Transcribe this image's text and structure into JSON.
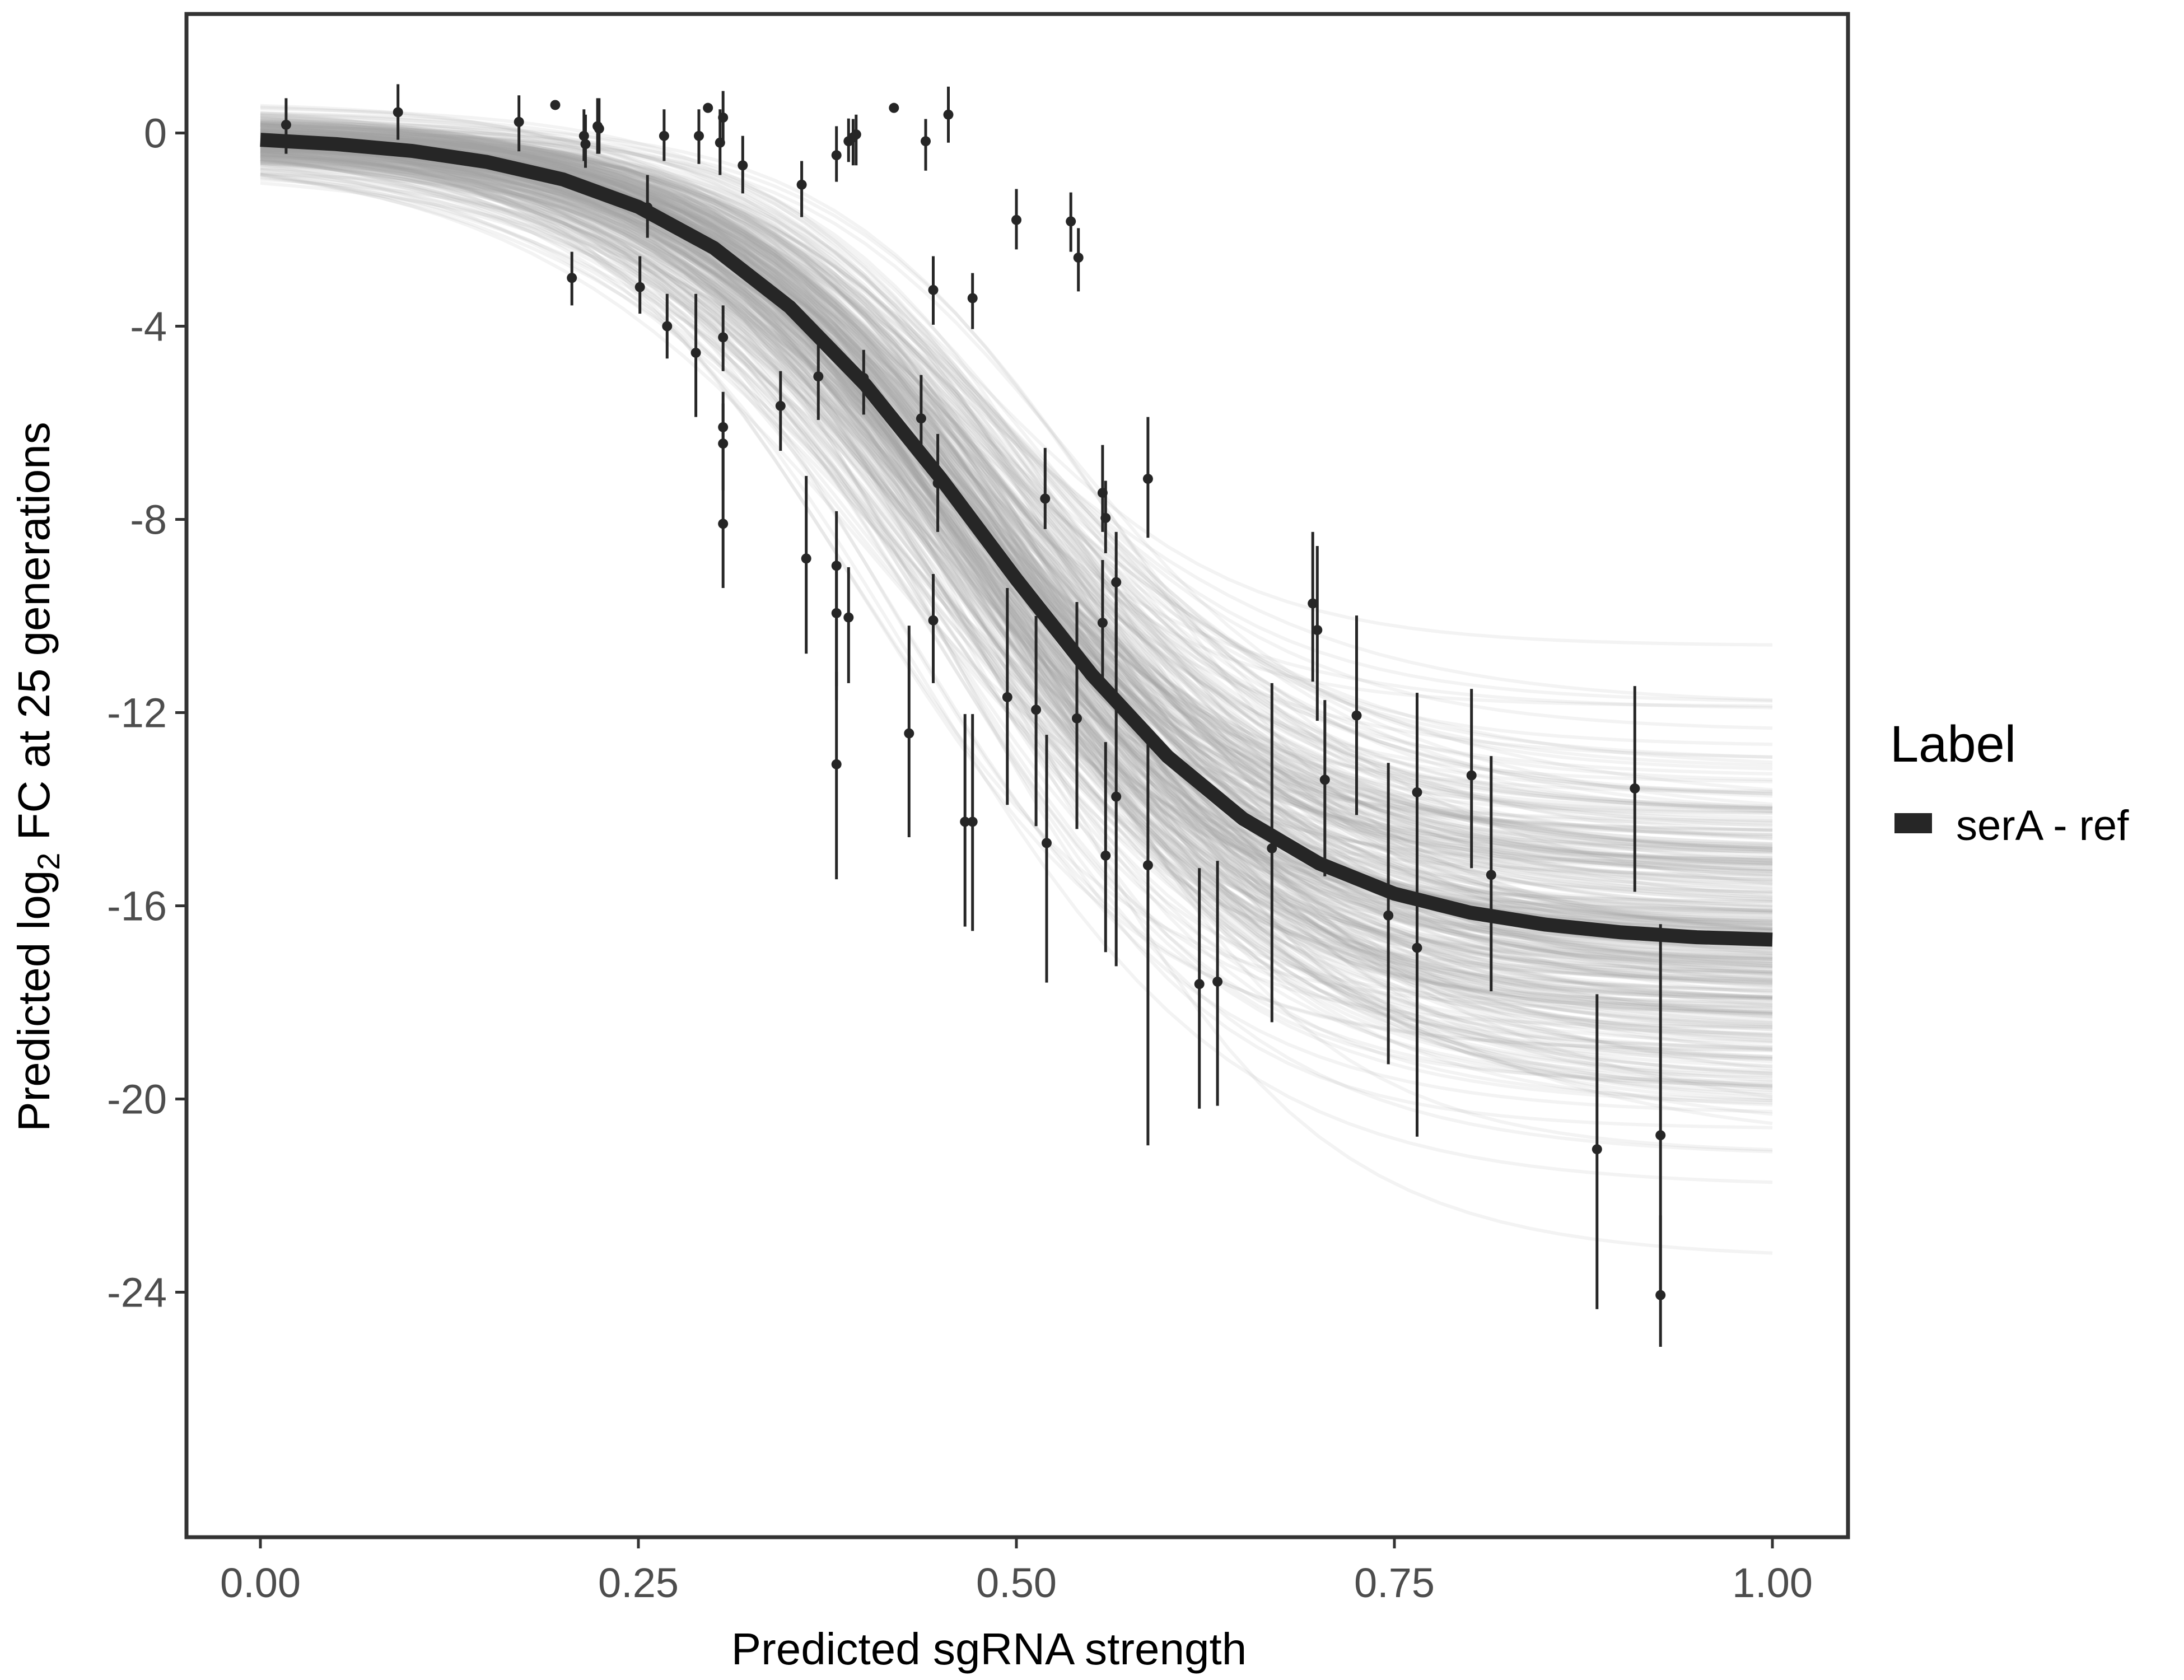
{
  "chart_data": {
    "type": "scatter",
    "title": "",
    "xlabel": "Predicted sgRNA strength",
    "ylabel_parts": {
      "pre": "Predicted  log",
      "sub": "2",
      "post": " FC at 25 generations"
    },
    "xlim": [
      -0.05,
      1.05
    ],
    "ylim": [
      -29.1,
      2.5
    ],
    "x_ticks": [
      0,
      0.25,
      0.5,
      0.75,
      1
    ],
    "x_tick_labels": [
      "0.00",
      "0.25",
      "0.50",
      "0.75",
      "1.00"
    ],
    "y_ticks": [
      0,
      -4,
      -8,
      -12,
      -16,
      -20,
      -24
    ],
    "y_tick_labels": [
      "0",
      "-4",
      "-8",
      "-12",
      "-16",
      "-20",
      "-24"
    ],
    "grid": false,
    "legend": {
      "title": "Label",
      "placement": "right",
      "entries": [
        {
          "label": "serA - ref",
          "color": "#262626"
        }
      ]
    },
    "colors": {
      "fit": "#262626",
      "points": "#262626",
      "draws": "#a3a3a3",
      "panel_border": "#333333"
    },
    "fit_curve": {
      "x": [
        0,
        0.05,
        0.1,
        0.15,
        0.2,
        0.25,
        0.3,
        0.35,
        0.4,
        0.45,
        0.5,
        0.55,
        0.6,
        0.65,
        0.7,
        0.75,
        0.8,
        0.85,
        0.9,
        0.95,
        1
      ],
      "y": [
        -0.14,
        -0.23,
        -0.37,
        -0.6,
        -0.96,
        -1.53,
        -2.38,
        -3.6,
        -5.21,
        -7.15,
        -9.24,
        -11.22,
        -12.91,
        -14.2,
        -15.12,
        -15.75,
        -16.14,
        -16.39,
        -16.55,
        -16.65,
        -16.7
      ]
    },
    "posterior_draws": {
      "count": 350,
      "asymptote_mean": -16.8,
      "asymptote_sd": 1.9,
      "midpoint_mean": 0.48,
      "midpoint_sd": 0.03,
      "steepness_mean": 10,
      "steepness_sd": 1.2
    },
    "points": [
      {
        "x": 0.017,
        "y": 0.17,
        "lo": -0.43,
        "hi": 0.72
      },
      {
        "x": 0.091,
        "y": 0.43,
        "lo": -0.14,
        "hi": 1.01
      },
      {
        "x": 0.171,
        "y": 0.23,
        "lo": -0.38,
        "hi": 0.78
      },
      {
        "x": 0.195,
        "y": 0.58,
        "lo": 0.58,
        "hi": 0.58
      },
      {
        "x": 0.206,
        "y": -3.0,
        "lo": -3.57,
        "hi": -2.46
      },
      {
        "x": 0.214,
        "y": -0.06,
        "lo": -0.58,
        "hi": 0.49
      },
      {
        "x": 0.215,
        "y": -0.23,
        "lo": -0.72,
        "hi": 0.38
      },
      {
        "x": 0.223,
        "y": 0.14,
        "lo": -0.43,
        "hi": 0.72
      },
      {
        "x": 0.224,
        "y": 0.09,
        "lo": -0.43,
        "hi": 0.72
      },
      {
        "x": 0.251,
        "y": -3.19,
        "lo": -3.74,
        "hi": -2.55
      },
      {
        "x": 0.256,
        "y": -1.54,
        "lo": -2.17,
        "hi": -0.87
      },
      {
        "x": 0.267,
        "y": -0.06,
        "lo": -0.58,
        "hi": 0.49
      },
      {
        "x": 0.269,
        "y": -4.0,
        "lo": -4.67,
        "hi": -3.33
      },
      {
        "x": 0.288,
        "y": -4.55,
        "lo": -5.88,
        "hi": -3.33
      },
      {
        "x": 0.29,
        "y": -0.06,
        "lo": -0.64,
        "hi": 0.49
      },
      {
        "x": 0.296,
        "y": 0.52,
        "lo": 0.52,
        "hi": 0.52
      },
      {
        "x": 0.304,
        "y": -0.2,
        "lo": -0.87,
        "hi": 0.49
      },
      {
        "x": 0.306,
        "y": 0.32,
        "lo": -0.23,
        "hi": 0.87
      },
      {
        "x": 0.306,
        "y": -4.23,
        "lo": -4.93,
        "hi": -3.57
      },
      {
        "x": 0.306,
        "y": -6.09,
        "lo": -6.81,
        "hi": -5.36
      },
      {
        "x": 0.306,
        "y": -6.43,
        "lo": -7.4,
        "hi": -5.6
      },
      {
        "x": 0.306,
        "y": -8.09,
        "lo": -9.42,
        "hi": -6.81
      },
      {
        "x": 0.319,
        "y": -0.67,
        "lo": -1.25,
        "hi": -0.06
      },
      {
        "x": 0.344,
        "y": -5.65,
        "lo": -6.58,
        "hi": -4.93
      },
      {
        "x": 0.358,
        "y": -1.07,
        "lo": -1.74,
        "hi": -0.58
      },
      {
        "x": 0.361,
        "y": -8.81,
        "lo": -10.78,
        "hi": -7.1
      },
      {
        "x": 0.369,
        "y": -5.04,
        "lo": -5.94,
        "hi": -4.2
      },
      {
        "x": 0.381,
        "y": -0.46,
        "lo": -1.01,
        "hi": 0.14
      },
      {
        "x": 0.381,
        "y": -8.96,
        "lo": -11.45,
        "hi": -7.83
      },
      {
        "x": 0.381,
        "y": -9.94,
        "lo": -11.74,
        "hi": -8.84
      },
      {
        "x": 0.381,
        "y": -13.07,
        "lo": -15.45,
        "hi": -11.16
      },
      {
        "x": 0.389,
        "y": -0.17,
        "lo": -0.6,
        "hi": 0.3
      },
      {
        "x": 0.389,
        "y": -10.03,
        "lo": -11.39,
        "hi": -8.99
      },
      {
        "x": 0.392,
        "y": -0.09,
        "lo": -0.67,
        "hi": 0.29
      },
      {
        "x": 0.394,
        "y": -0.03,
        "lo": -0.67,
        "hi": 0.38
      },
      {
        "x": 0.399,
        "y": -5.07,
        "lo": -5.83,
        "hi": -4.49
      },
      {
        "x": 0.419,
        "y": 0.52,
        "lo": 0.52,
        "hi": 0.52
      },
      {
        "x": 0.429,
        "y": -12.43,
        "lo": -14.58,
        "hi": -10.2
      },
      {
        "x": 0.437,
        "y": -5.91,
        "lo": -6.81,
        "hi": -5.01
      },
      {
        "x": 0.44,
        "y": -0.17,
        "lo": -0.78,
        "hi": 0.29
      },
      {
        "x": 0.445,
        "y": -3.25,
        "lo": -3.97,
        "hi": -2.55
      },
      {
        "x": 0.445,
        "y": -10.09,
        "lo": -11.39,
        "hi": -9.13
      },
      {
        "x": 0.448,
        "y": -7.25,
        "lo": -8.26,
        "hi": -6.23
      },
      {
        "x": 0.455,
        "y": 0.38,
        "lo": -0.2,
        "hi": 0.96
      },
      {
        "x": 0.466,
        "y": -14.26,
        "lo": -16.43,
        "hi": -12.03
      },
      {
        "x": 0.471,
        "y": -14.26,
        "lo": -16.52,
        "hi": -12.03
      },
      {
        "x": 0.471,
        "y": -3.42,
        "lo": -4.06,
        "hi": -2.9
      },
      {
        "x": 0.494,
        "y": -11.68,
        "lo": -13.91,
        "hi": -9.42
      },
      {
        "x": 0.5,
        "y": -1.8,
        "lo": -2.41,
        "hi": -1.16
      },
      {
        "x": 0.513,
        "y": -11.94,
        "lo": -14.35,
        "hi": -10.0
      },
      {
        "x": 0.519,
        "y": -7.57,
        "lo": -8.2,
        "hi": -6.52
      },
      {
        "x": 0.52,
        "y": -14.7,
        "lo": -17.59,
        "hi": -12.46
      },
      {
        "x": 0.536,
        "y": -1.83,
        "lo": -2.46,
        "hi": -1.23
      },
      {
        "x": 0.54,
        "y": -12.12,
        "lo": -14.41,
        "hi": -9.71
      },
      {
        "x": 0.541,
        "y": -2.58,
        "lo": -3.28,
        "hi": -1.97
      },
      {
        "x": 0.557,
        "y": -7.45,
        "lo": -8.26,
        "hi": -6.46
      },
      {
        "x": 0.557,
        "y": -10.14,
        "lo": -11.45,
        "hi": -8.84
      },
      {
        "x": 0.559,
        "y": -7.97,
        "lo": -8.7,
        "hi": -7.2
      },
      {
        "x": 0.559,
        "y": -14.96,
        "lo": -16.96,
        "hi": -12.61
      },
      {
        "x": 0.566,
        "y": -9.3,
        "lo": -10.87,
        "hi": -8.26
      },
      {
        "x": 0.566,
        "y": -13.74,
        "lo": -17.25,
        "hi": -9.71
      },
      {
        "x": 0.587,
        "y": -7.16,
        "lo": -8.38,
        "hi": -5.88
      },
      {
        "x": 0.587,
        "y": -15.16,
        "lo": -20.96,
        "hi": -12.32
      },
      {
        "x": 0.621,
        "y": -17.62,
        "lo": -20.2,
        "hi": -15.22
      },
      {
        "x": 0.633,
        "y": -17.57,
        "lo": -20.14,
        "hi": -15.07
      },
      {
        "x": 0.669,
        "y": -14.81,
        "lo": -18.41,
        "hi": -11.39
      },
      {
        "x": 0.696,
        "y": -9.74,
        "lo": -11.36,
        "hi": -8.26
      },
      {
        "x": 0.699,
        "y": -10.29,
        "lo": -12.17,
        "hi": -8.55
      },
      {
        "x": 0.704,
        "y": -13.39,
        "lo": -15.39,
        "hi": -11.74
      },
      {
        "x": 0.725,
        "y": -12.06,
        "lo": -14.12,
        "hi": -9.99
      },
      {
        "x": 0.746,
        "y": -16.2,
        "lo": -19.28,
        "hi": -13.04
      },
      {
        "x": 0.765,
        "y": -13.65,
        "lo": -15.36,
        "hi": -11.74
      },
      {
        "x": 0.765,
        "y": -16.87,
        "lo": -20.78,
        "hi": -11.59
      },
      {
        "x": 0.801,
        "y": -13.3,
        "lo": -15.22,
        "hi": -11.51
      },
      {
        "x": 0.814,
        "y": -15.36,
        "lo": -17.77,
        "hi": -12.9
      },
      {
        "x": 0.884,
        "y": -21.04,
        "lo": -24.35,
        "hi": -17.83
      },
      {
        "x": 0.909,
        "y": -13.57,
        "lo": -15.71,
        "hi": -11.45
      },
      {
        "x": 0.926,
        "y": -20.75,
        "lo": -24.06,
        "hi": -16.38
      },
      {
        "x": 0.926,
        "y": -24.06,
        "lo": -25.13,
        "hi": -22.41
      }
    ]
  }
}
